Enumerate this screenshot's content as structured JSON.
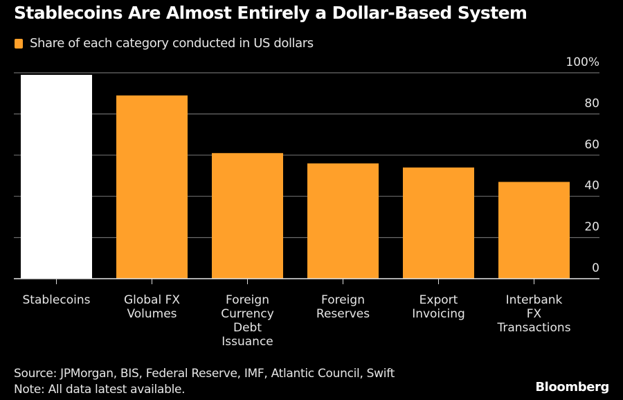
{
  "chart_data": {
    "type": "bar",
    "title": "Stablecoins Are Almost Entirely a Dollar-Based System",
    "legend": [
      {
        "label": "Share of each category conducted in US dollars",
        "color": "#ffa02a"
      }
    ],
    "legend_placement": "top-left",
    "categories": [
      [
        "Stablecoins"
      ],
      [
        "Global FX",
        "Volumes"
      ],
      [
        "Foreign",
        "Currency",
        "Debt",
        "Issuance"
      ],
      [
        "Foreign",
        "Reserves"
      ],
      [
        "Export",
        "Invoicing"
      ],
      [
        "Interbank",
        "FX",
        "Transactions"
      ]
    ],
    "values": [
      99,
      89,
      61,
      56,
      54,
      47
    ],
    "bar_colors": [
      "#ffffff",
      "#ffa02a",
      "#ffa02a",
      "#ffa02a",
      "#ffa02a",
      "#ffa02a"
    ],
    "xlabel": "",
    "ylabel": "",
    "ylim": [
      0,
      100
    ],
    "yticks": [
      0,
      20,
      40,
      60,
      80,
      100
    ],
    "ytick_labels": [
      "0",
      "20",
      "40",
      "60",
      "80",
      "100%"
    ],
    "y_axis_side": "right",
    "grid": true
  },
  "footer": {
    "source": "Source: JPMorgan, BIS, Federal Reserve, IMF, Atlantic Council, Swift",
    "note": "Note: All data latest available."
  },
  "brand": "Bloomberg"
}
